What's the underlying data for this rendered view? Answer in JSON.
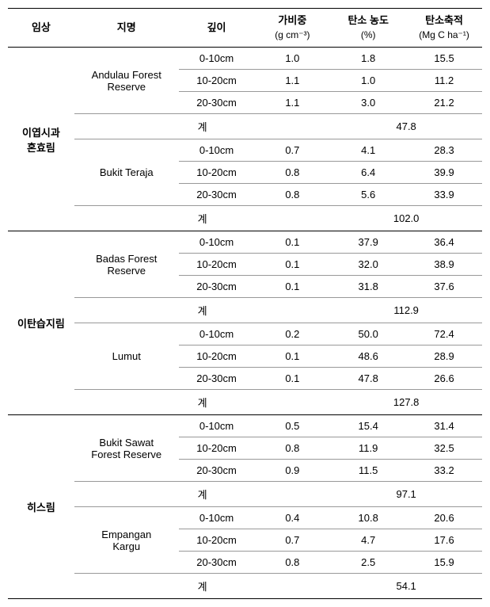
{
  "headers": {
    "forest_type": "임상",
    "site": "지명",
    "depth": "깊이",
    "bulk_density": "가비중",
    "bulk_density_unit": "(g cm⁻³)",
    "carbon_conc": "탄소 농도",
    "carbon_conc_unit": "(%)",
    "carbon_storage": "탄소축적",
    "carbon_storage_unit": "(Mg C ha⁻¹)"
  },
  "subtotal_label": "계",
  "groups": [
    {
      "forest_type": "이엽시과 혼효림",
      "sites": [
        {
          "name": "Andulau Forest Reserve",
          "rows": [
            {
              "depth": "0-10cm",
              "bd": "1.0",
              "cc": "1.8",
              "cs": "15.5"
            },
            {
              "depth": "10-20cm",
              "bd": "1.1",
              "cc": "1.0",
              "cs": "11.2"
            },
            {
              "depth": "20-30cm",
              "bd": "1.1",
              "cc": "3.0",
              "cs": "21.2"
            }
          ],
          "subtotal": "47.8"
        },
        {
          "name": "Bukit Teraja",
          "rows": [
            {
              "depth": "0-10cm",
              "bd": "0.7",
              "cc": "4.1",
              "cs": "28.3"
            },
            {
              "depth": "10-20cm",
              "bd": "0.8",
              "cc": "6.4",
              "cs": "39.9"
            },
            {
              "depth": "20-30cm",
              "bd": "0.8",
              "cc": "5.6",
              "cs": "33.9"
            }
          ],
          "subtotal": "102.0"
        }
      ]
    },
    {
      "forest_type": "이탄습지림",
      "sites": [
        {
          "name": "Badas Forest Reserve",
          "rows": [
            {
              "depth": "0-10cm",
              "bd": "0.1",
              "cc": "37.9",
              "cs": "36.4"
            },
            {
              "depth": "10-20cm",
              "bd": "0.1",
              "cc": "32.0",
              "cs": "38.9"
            },
            {
              "depth": "20-30cm",
              "bd": "0.1",
              "cc": "31.8",
              "cs": "37.6"
            }
          ],
          "subtotal": "112.9"
        },
        {
          "name": "Lumut",
          "rows": [
            {
              "depth": "0-10cm",
              "bd": "0.2",
              "cc": "50.0",
              "cs": "72.4"
            },
            {
              "depth": "10-20cm",
              "bd": "0.1",
              "cc": "48.6",
              "cs": "28.9"
            },
            {
              "depth": "20-30cm",
              "bd": "0.1",
              "cc": "47.8",
              "cs": "26.6"
            }
          ],
          "subtotal": "127.8"
        }
      ]
    },
    {
      "forest_type": "히스림",
      "sites": [
        {
          "name": "Bukit Sawat Forest Reserve",
          "rows": [
            {
              "depth": "0-10cm",
              "bd": "0.5",
              "cc": "15.4",
              "cs": "31.4"
            },
            {
              "depth": "10-20cm",
              "bd": "0.8",
              "cc": "11.9",
              "cs": "32.5"
            },
            {
              "depth": "20-30cm",
              "bd": "0.9",
              "cc": "11.5",
              "cs": "33.2"
            }
          ],
          "subtotal": "97.1"
        },
        {
          "name": "Empangan Kargu",
          "rows": [
            {
              "depth": "0-10cm",
              "bd": "0.4",
              "cc": "10.8",
              "cs": "20.6"
            },
            {
              "depth": "10-20cm",
              "bd": "0.7",
              "cc": "4.7",
              "cs": "17.6"
            },
            {
              "depth": "20-30cm",
              "bd": "0.8",
              "cc": "2.5",
              "cs": "15.9"
            }
          ],
          "subtotal": "54.1"
        }
      ]
    }
  ]
}
